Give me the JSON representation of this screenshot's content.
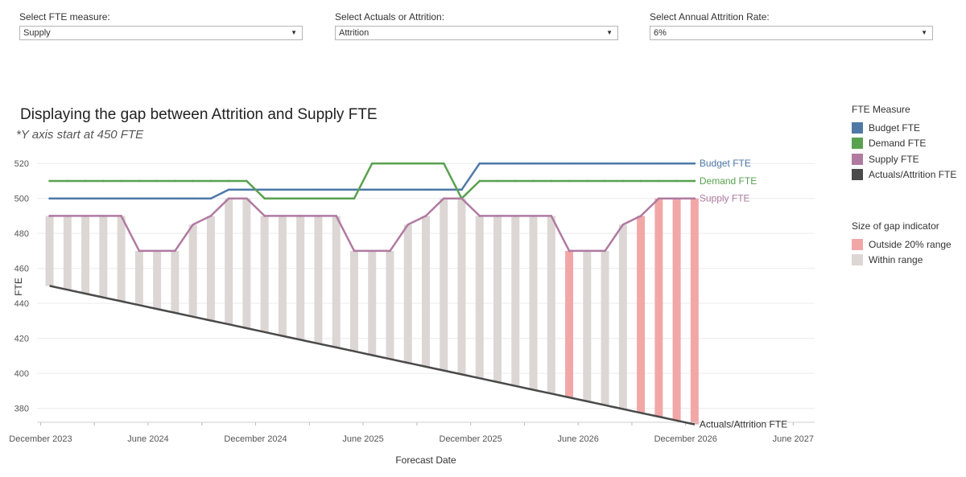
{
  "filters": [
    {
      "label": "Select FTE measure:",
      "value": "Supply"
    },
    {
      "label": "Select Actuals or Attrition:",
      "value": "Attrition"
    },
    {
      "label": "Select Annual Attrition Rate:",
      "value": "6%"
    }
  ],
  "legend_measure": {
    "title": "FTE Measure",
    "items": [
      {
        "label": "Budget FTE",
        "color": "#4e79a7"
      },
      {
        "label": "Demand FTE",
        "color": "#59a14f"
      },
      {
        "label": "Supply FTE",
        "color": "#b07aa1"
      },
      {
        "label": "Actuals/Attrition FTE",
        "color": "#4a4a4a"
      }
    ]
  },
  "legend_gap": {
    "title": "Size of gap indicator",
    "items": [
      {
        "label": "Outside 20% range",
        "color": "#f2a7a7"
      },
      {
        "label": "Within range",
        "color": "#dcd7d4"
      }
    ]
  },
  "chart_data": {
    "type": "line",
    "title": "Displaying the gap between Attrition and Supply FTE",
    "subtitle": "*Y axis start at 450 FTE",
    "xlabel": "Forecast Date",
    "ylabel": "FTE",
    "ylim": [
      372,
      527
    ],
    "y_ticks": [
      380,
      400,
      420,
      440,
      460,
      480,
      500,
      520
    ],
    "x_ticks": [
      "December 2023",
      "June 2024",
      "December 2024",
      "June 2025",
      "December 2025",
      "June 2026",
      "December 2026",
      "June 2027"
    ],
    "x_range_months": [
      -0.7,
      42.7
    ],
    "start_month": "January 2024",
    "series": [
      {
        "name": "Budget FTE",
        "color": "#4e79a7",
        "values": [
          500,
          500,
          500,
          500,
          500,
          500,
          500,
          500,
          500,
          500,
          505,
          505,
          505,
          505,
          505,
          505,
          505,
          505,
          505,
          505,
          505,
          505,
          505,
          505,
          520,
          520,
          520,
          520,
          520,
          520,
          520,
          520,
          520,
          520,
          520,
          520,
          520
        ]
      },
      {
        "name": "Demand FTE",
        "color": "#59a14f",
        "values": [
          510,
          510,
          510,
          510,
          510,
          510,
          510,
          510,
          510,
          510,
          510,
          510,
          500,
          500,
          500,
          500,
          500,
          500,
          520,
          520,
          520,
          520,
          520,
          500,
          510,
          510,
          510,
          510,
          510,
          510,
          510,
          510,
          510,
          510,
          510,
          510,
          510
        ]
      },
      {
        "name": "Supply FTE",
        "color": "#b07aa1",
        "values": [
          490,
          490,
          490,
          490,
          490,
          470,
          470,
          470,
          485,
          490,
          500,
          500,
          490,
          490,
          490,
          490,
          490,
          470,
          470,
          470,
          485,
          490,
          500,
          500,
          490,
          490,
          490,
          490,
          490,
          470,
          470,
          470,
          485,
          490,
          500,
          500,
          500
        ]
      },
      {
        "name": "Actuals/Attrition FTE",
        "color": "#4a4a4a",
        "values": [
          450,
          447.8,
          445.6,
          443.4,
          441.2,
          439,
          436.8,
          434.6,
          432.4,
          430.2,
          428,
          425.8,
          423.6,
          421.4,
          419.2,
          417,
          414.8,
          412.6,
          410.4,
          408.2,
          406,
          403.8,
          401.6,
          399.4,
          397.2,
          395,
          392.8,
          390.6,
          388.4,
          386.2,
          384,
          381.8,
          379.6,
          377.4,
          375.2,
          373,
          370.8
        ]
      }
    ],
    "gap_bars": {
      "outside_range_months": [
        29,
        33,
        34,
        35,
        36
      ]
    }
  }
}
